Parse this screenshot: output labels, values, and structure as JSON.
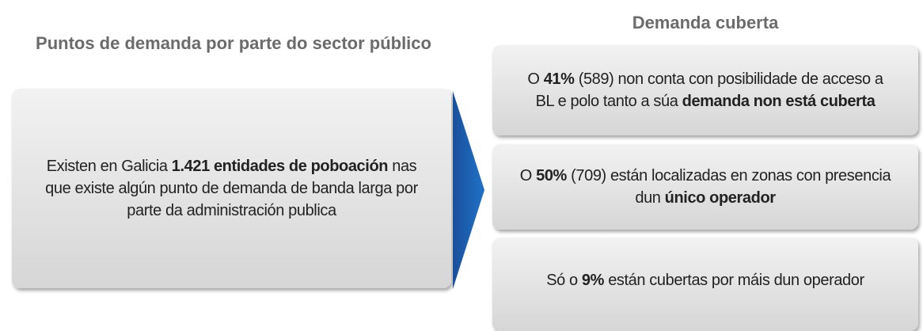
{
  "left": {
    "title": "Puntos de demanda por parte do sector público",
    "box": [
      {
        "text": "Existen en Galicia ",
        "bold": false
      },
      {
        "text": "1.421 entidades de poboación",
        "bold": true
      },
      {
        "text": " nas que existe algún punto de demanda de banda larga por parte da administración publica",
        "bold": false
      }
    ]
  },
  "right": {
    "title": "Demanda cuberta",
    "boxes": [
      [
        {
          "text": "O ",
          "bold": false
        },
        {
          "text": "41%",
          "bold": true
        },
        {
          "text": " (589) non conta con posibilidade de acceso a BL e polo tanto a súa ",
          "bold": false
        },
        {
          "text": "demanda non está cuberta",
          "bold": true
        }
      ],
      [
        {
          "text": "O ",
          "bold": false
        },
        {
          "text": "50%",
          "bold": true
        },
        {
          "text": " (709) están localizadas en zonas con presencia dun ",
          "bold": false
        },
        {
          "text": "único operador",
          "bold": true
        }
      ],
      [
        {
          "text": "Só o ",
          "bold": false
        },
        {
          "text": "9%",
          "bold": true
        },
        {
          "text": " están cubertas por máis dun operador",
          "bold": false
        }
      ]
    ]
  }
}
